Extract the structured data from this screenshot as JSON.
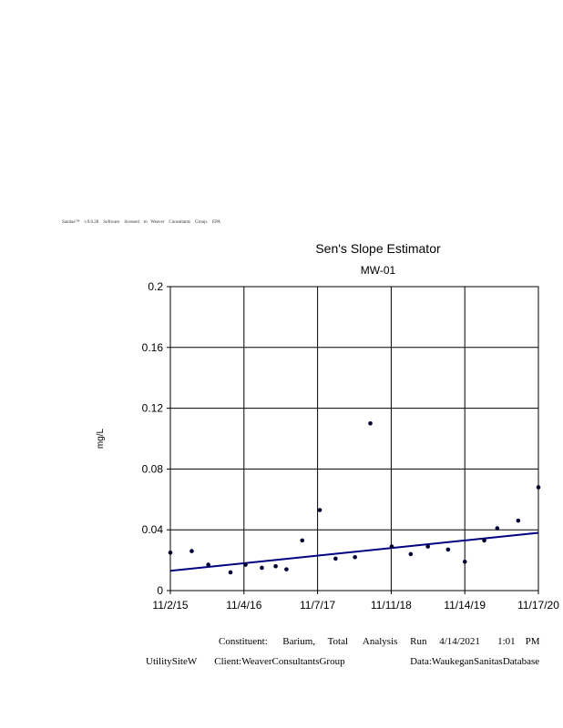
{
  "license_line": "Sanitas™    v.9.6.28    Software    licensed    to   Weaver    Consultants    Group.    EPA",
  "footer": {
    "line1": "Constituent:      Barium,     Total      Analysis     Run     4/14/2021       1:01    PM",
    "line2": "UtilitySiteW       Client:WeaverConsultantsGroup                          Data:WaukeganSanitasDatabase"
  },
  "chart_data": {
    "type": "scatter",
    "title": "Sen's Slope Estimator",
    "subtitle": "MW-01",
    "xlabel": "",
    "ylabel": "mg/L",
    "ylim": [
      0,
      0.2
    ],
    "xlim": [
      "2015-11-02",
      "2020-11-17"
    ],
    "x_ticks": [
      "11/2/15",
      "11/4/16",
      "11/7/17",
      "11/11/18",
      "11/14/19",
      "11/17/20"
    ],
    "y_ticks": [
      "0",
      "0.04",
      "0.08",
      "0.12",
      "0.16",
      "0.2"
    ],
    "grid": true,
    "colors": {
      "points": "#000033",
      "trend": "#000080"
    },
    "points": [
      {
        "x": "2015-11-02",
        "y": 0.025
      },
      {
        "x": "2016-02-17",
        "y": 0.026
      },
      {
        "x": "2016-05-10",
        "y": 0.017
      },
      {
        "x": "2016-08-29",
        "y": 0.012
      },
      {
        "x": "2016-11-12",
        "y": 0.017
      },
      {
        "x": "2017-02-02",
        "y": 0.015
      },
      {
        "x": "2017-04-12",
        "y": 0.016
      },
      {
        "x": "2017-06-05",
        "y": 0.014
      },
      {
        "x": "2017-08-23",
        "y": 0.033
      },
      {
        "x": "2017-11-19",
        "y": 0.053
      },
      {
        "x": "2018-02-06",
        "y": 0.021
      },
      {
        "x": "2018-05-14",
        "y": 0.022
      },
      {
        "x": "2018-07-30",
        "y": 0.11
      },
      {
        "x": "2018-11-14",
        "y": 0.029
      },
      {
        "x": "2019-02-17",
        "y": 0.024
      },
      {
        "x": "2019-05-14",
        "y": 0.029
      },
      {
        "x": "2019-08-23",
        "y": 0.027
      },
      {
        "x": "2019-11-15",
        "y": 0.019
      },
      {
        "x": "2020-02-20",
        "y": 0.033
      },
      {
        "x": "2020-04-25",
        "y": 0.041
      },
      {
        "x": "2020-08-08",
        "y": 0.046
      },
      {
        "x": "2020-11-17",
        "y": 0.068
      }
    ],
    "trend_line": [
      {
        "x": "2015-11-02",
        "y": 0.013
      },
      {
        "x": "2020-11-17",
        "y": 0.038
      }
    ]
  }
}
